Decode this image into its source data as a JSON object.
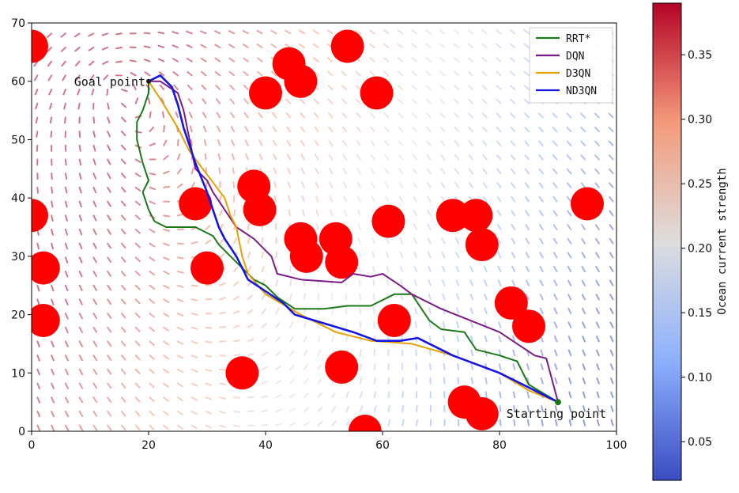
{
  "chart_data": {
    "type": "line",
    "title": "",
    "xlabel": "",
    "ylabel": "",
    "xlim": [
      0,
      100
    ],
    "ylim": [
      0,
      70
    ],
    "xticks": [
      "0",
      "20",
      "40",
      "60",
      "80",
      "100"
    ],
    "yticks": [
      "0",
      "10",
      "20",
      "30",
      "40",
      "50",
      "60",
      "70"
    ],
    "grid": false,
    "legend_position": "top-right",
    "annotations": {
      "goal": {
        "label": "Goal point",
        "x": 20,
        "y": 60
      },
      "start": {
        "label": "Starting point",
        "x": 90,
        "y": 5
      }
    },
    "obstacle_color": "#ff0000",
    "obstacles": [
      [
        0,
        66
      ],
      [
        0,
        37
      ],
      [
        2,
        28
      ],
      [
        2,
        19
      ],
      [
        28,
        39
      ],
      [
        30,
        28
      ],
      [
        36,
        10
      ],
      [
        38,
        42
      ],
      [
        39,
        38
      ],
      [
        40,
        58
      ],
      [
        44,
        63
      ],
      [
        46,
        60
      ],
      [
        46,
        33
      ],
      [
        47,
        30
      ],
      [
        52,
        33
      ],
      [
        53,
        29
      ],
      [
        53,
        11
      ],
      [
        54,
        66
      ],
      [
        57,
        0
      ],
      [
        59,
        58
      ],
      [
        61,
        36
      ],
      [
        62,
        19
      ],
      [
        72,
        37
      ],
      [
        76,
        37
      ],
      [
        77,
        32
      ],
      [
        74,
        5
      ],
      [
        77,
        3
      ],
      [
        82,
        22
      ],
      [
        85,
        18
      ],
      [
        95,
        39
      ]
    ],
    "series": [
      {
        "name": "RRT*",
        "color": "#1a7a1a",
        "points": [
          [
            90,
            5
          ],
          [
            85,
            8
          ],
          [
            83,
            12
          ],
          [
            80,
            13
          ],
          [
            76,
            14
          ],
          [
            74,
            17
          ],
          [
            70,
            17.5
          ],
          [
            68,
            19
          ],
          [
            65,
            23.5
          ],
          [
            62,
            23.5
          ],
          [
            58,
            21.5
          ],
          [
            54,
            21.5
          ],
          [
            50,
            21
          ],
          [
            45,
            21
          ],
          [
            42,
            23
          ],
          [
            40,
            25
          ],
          [
            38,
            26
          ],
          [
            36,
            28
          ],
          [
            34,
            30
          ],
          [
            32,
            32
          ],
          [
            31,
            33.5
          ],
          [
            28,
            35
          ],
          [
            23,
            35
          ],
          [
            21,
            36
          ],
          [
            20,
            38
          ],
          [
            19,
            41
          ],
          [
            20,
            43
          ],
          [
            19,
            46
          ],
          [
            18,
            50
          ],
          [
            18,
            53
          ],
          [
            19,
            55
          ],
          [
            20,
            58
          ],
          [
            20,
            60
          ]
        ]
      },
      {
        "name": "DQN",
        "color": "#7b1a8a",
        "points": [
          [
            90,
            5
          ],
          [
            88,
            12.5
          ],
          [
            86,
            13
          ],
          [
            80,
            17
          ],
          [
            75,
            19
          ],
          [
            70,
            21
          ],
          [
            65,
            23.5
          ],
          [
            63,
            25
          ],
          [
            60,
            27
          ],
          [
            58,
            26.5
          ],
          [
            55,
            27
          ],
          [
            53,
            25.5
          ],
          [
            46,
            26
          ],
          [
            42,
            27
          ],
          [
            41,
            30
          ],
          [
            38,
            33
          ],
          [
            35,
            35
          ],
          [
            33,
            38
          ],
          [
            31,
            41
          ],
          [
            30,
            43
          ],
          [
            28,
            45
          ],
          [
            27,
            50
          ],
          [
            26,
            55
          ],
          [
            25,
            58
          ],
          [
            22,
            60
          ],
          [
            20,
            60
          ]
        ]
      },
      {
        "name": "D3QN",
        "color": "#e8a000",
        "points": [
          [
            90,
            5
          ],
          [
            85,
            7
          ],
          [
            80,
            10
          ],
          [
            72,
            13
          ],
          [
            65,
            15
          ],
          [
            58,
            15.5
          ],
          [
            52,
            17
          ],
          [
            46,
            20
          ],
          [
            40,
            23.5
          ],
          [
            37,
            27
          ],
          [
            36,
            30
          ],
          [
            35,
            35
          ],
          [
            34,
            37
          ],
          [
            33,
            40
          ],
          [
            30,
            44
          ],
          [
            27,
            48
          ],
          [
            25,
            52
          ],
          [
            22,
            57
          ],
          [
            20,
            60
          ]
        ]
      },
      {
        "name": "ND3QN",
        "color": "#1414e6",
        "points": [
          [
            90,
            5
          ],
          [
            80,
            10
          ],
          [
            72,
            13
          ],
          [
            66,
            16
          ],
          [
            63,
            15.5
          ],
          [
            59,
            15.5
          ],
          [
            55,
            17
          ],
          [
            50,
            18.5
          ],
          [
            45,
            20
          ],
          [
            43,
            22
          ],
          [
            40,
            24
          ],
          [
            37,
            26
          ],
          [
            35,
            30
          ],
          [
            33,
            33
          ],
          [
            32,
            35
          ],
          [
            31,
            38
          ],
          [
            30,
            41
          ],
          [
            28,
            46
          ],
          [
            26,
            52
          ],
          [
            25,
            56
          ],
          [
            24,
            59
          ],
          [
            22,
            61
          ],
          [
            20,
            60
          ]
        ]
      }
    ],
    "colorbar": {
      "label": "Ocean current strength",
      "range": [
        0.02,
        0.39
      ],
      "ticks": [
        "0.05",
        "0.10",
        "0.15",
        "0.20",
        "0.25",
        "0.30",
        "0.35"
      ],
      "colormap": "coolwarm"
    },
    "vector_field": "ocean current quiver arrows"
  }
}
